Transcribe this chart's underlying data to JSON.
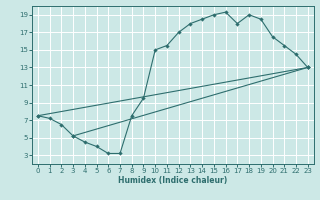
{
  "xlabel": "Humidex (Indice chaleur)",
  "bg_color": "#cce8e6",
  "grid_color": "#b0d8d5",
  "line_color": "#2e6e6e",
  "xlim": [
    -0.5,
    23.5
  ],
  "ylim": [
    2.0,
    20.0
  ],
  "xticks": [
    0,
    1,
    2,
    3,
    4,
    5,
    6,
    7,
    8,
    9,
    10,
    11,
    12,
    13,
    14,
    15,
    16,
    17,
    18,
    19,
    20,
    21,
    22,
    23
  ],
  "yticks": [
    3,
    5,
    7,
    9,
    11,
    13,
    15,
    17,
    19
  ],
  "curve_x": [
    0,
    1,
    2,
    3,
    4,
    5,
    6,
    7,
    8,
    9,
    10,
    11,
    12,
    13,
    14,
    15,
    16,
    17,
    18,
    19,
    20,
    21,
    22,
    23
  ],
  "curve_y": [
    7.5,
    7.2,
    6.5,
    5.2,
    4.5,
    4.0,
    3.2,
    3.2,
    7.5,
    9.5,
    15.0,
    15.5,
    17.0,
    18.0,
    18.5,
    19.0,
    19.3,
    18.0,
    19.0,
    18.5,
    16.5,
    15.5,
    14.5,
    13.0
  ],
  "line1_x": [
    0,
    23
  ],
  "line1_y": [
    7.5,
    13.0
  ],
  "line2_x": [
    3,
    23
  ],
  "line2_y": [
    5.2,
    13.0
  ],
  "xlabel_fontsize": 5.5,
  "tick_fontsize": 5.0
}
